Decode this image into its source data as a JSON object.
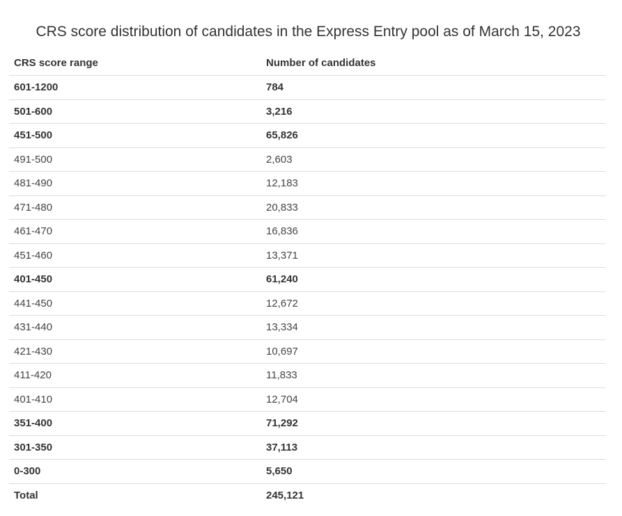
{
  "caption": "CRS score distribution of candidates in the Express Entry pool as of March 15, 2023",
  "columns": [
    "CRS score range",
    "Number of candidates"
  ],
  "rows": [
    {
      "range": "601-1200",
      "count": "784",
      "bold": true
    },
    {
      "range": "501-600",
      "count": "3,216",
      "bold": true
    },
    {
      "range": "451-500",
      "count": "65,826",
      "bold": true
    },
    {
      "range": "491-500",
      "count": "2,603",
      "bold": false
    },
    {
      "range": "481-490",
      "count": "12,183",
      "bold": false
    },
    {
      "range": "471-480",
      "count": "20,833",
      "bold": false
    },
    {
      "range": "461-470",
      "count": "16,836",
      "bold": false
    },
    {
      "range": "451-460",
      "count": "13,371",
      "bold": false
    },
    {
      "range": "401-450",
      "count": "61,240",
      "bold": true
    },
    {
      "range": "441-450",
      "count": "12,672",
      "bold": false
    },
    {
      "range": "431-440",
      "count": "13,334",
      "bold": false
    },
    {
      "range": "421-430",
      "count": "10,697",
      "bold": false
    },
    {
      "range": "411-420",
      "count": "11,833",
      "bold": false
    },
    {
      "range": "401-410",
      "count": "12,704",
      "bold": false
    },
    {
      "range": "351-400",
      "count": "71,292",
      "bold": true
    },
    {
      "range": "301-350",
      "count": "37,113",
      "bold": true
    },
    {
      "range": "0-300",
      "count": "5,650",
      "bold": true
    },
    {
      "range": "Total",
      "count": "245,121",
      "bold": true
    }
  ]
}
